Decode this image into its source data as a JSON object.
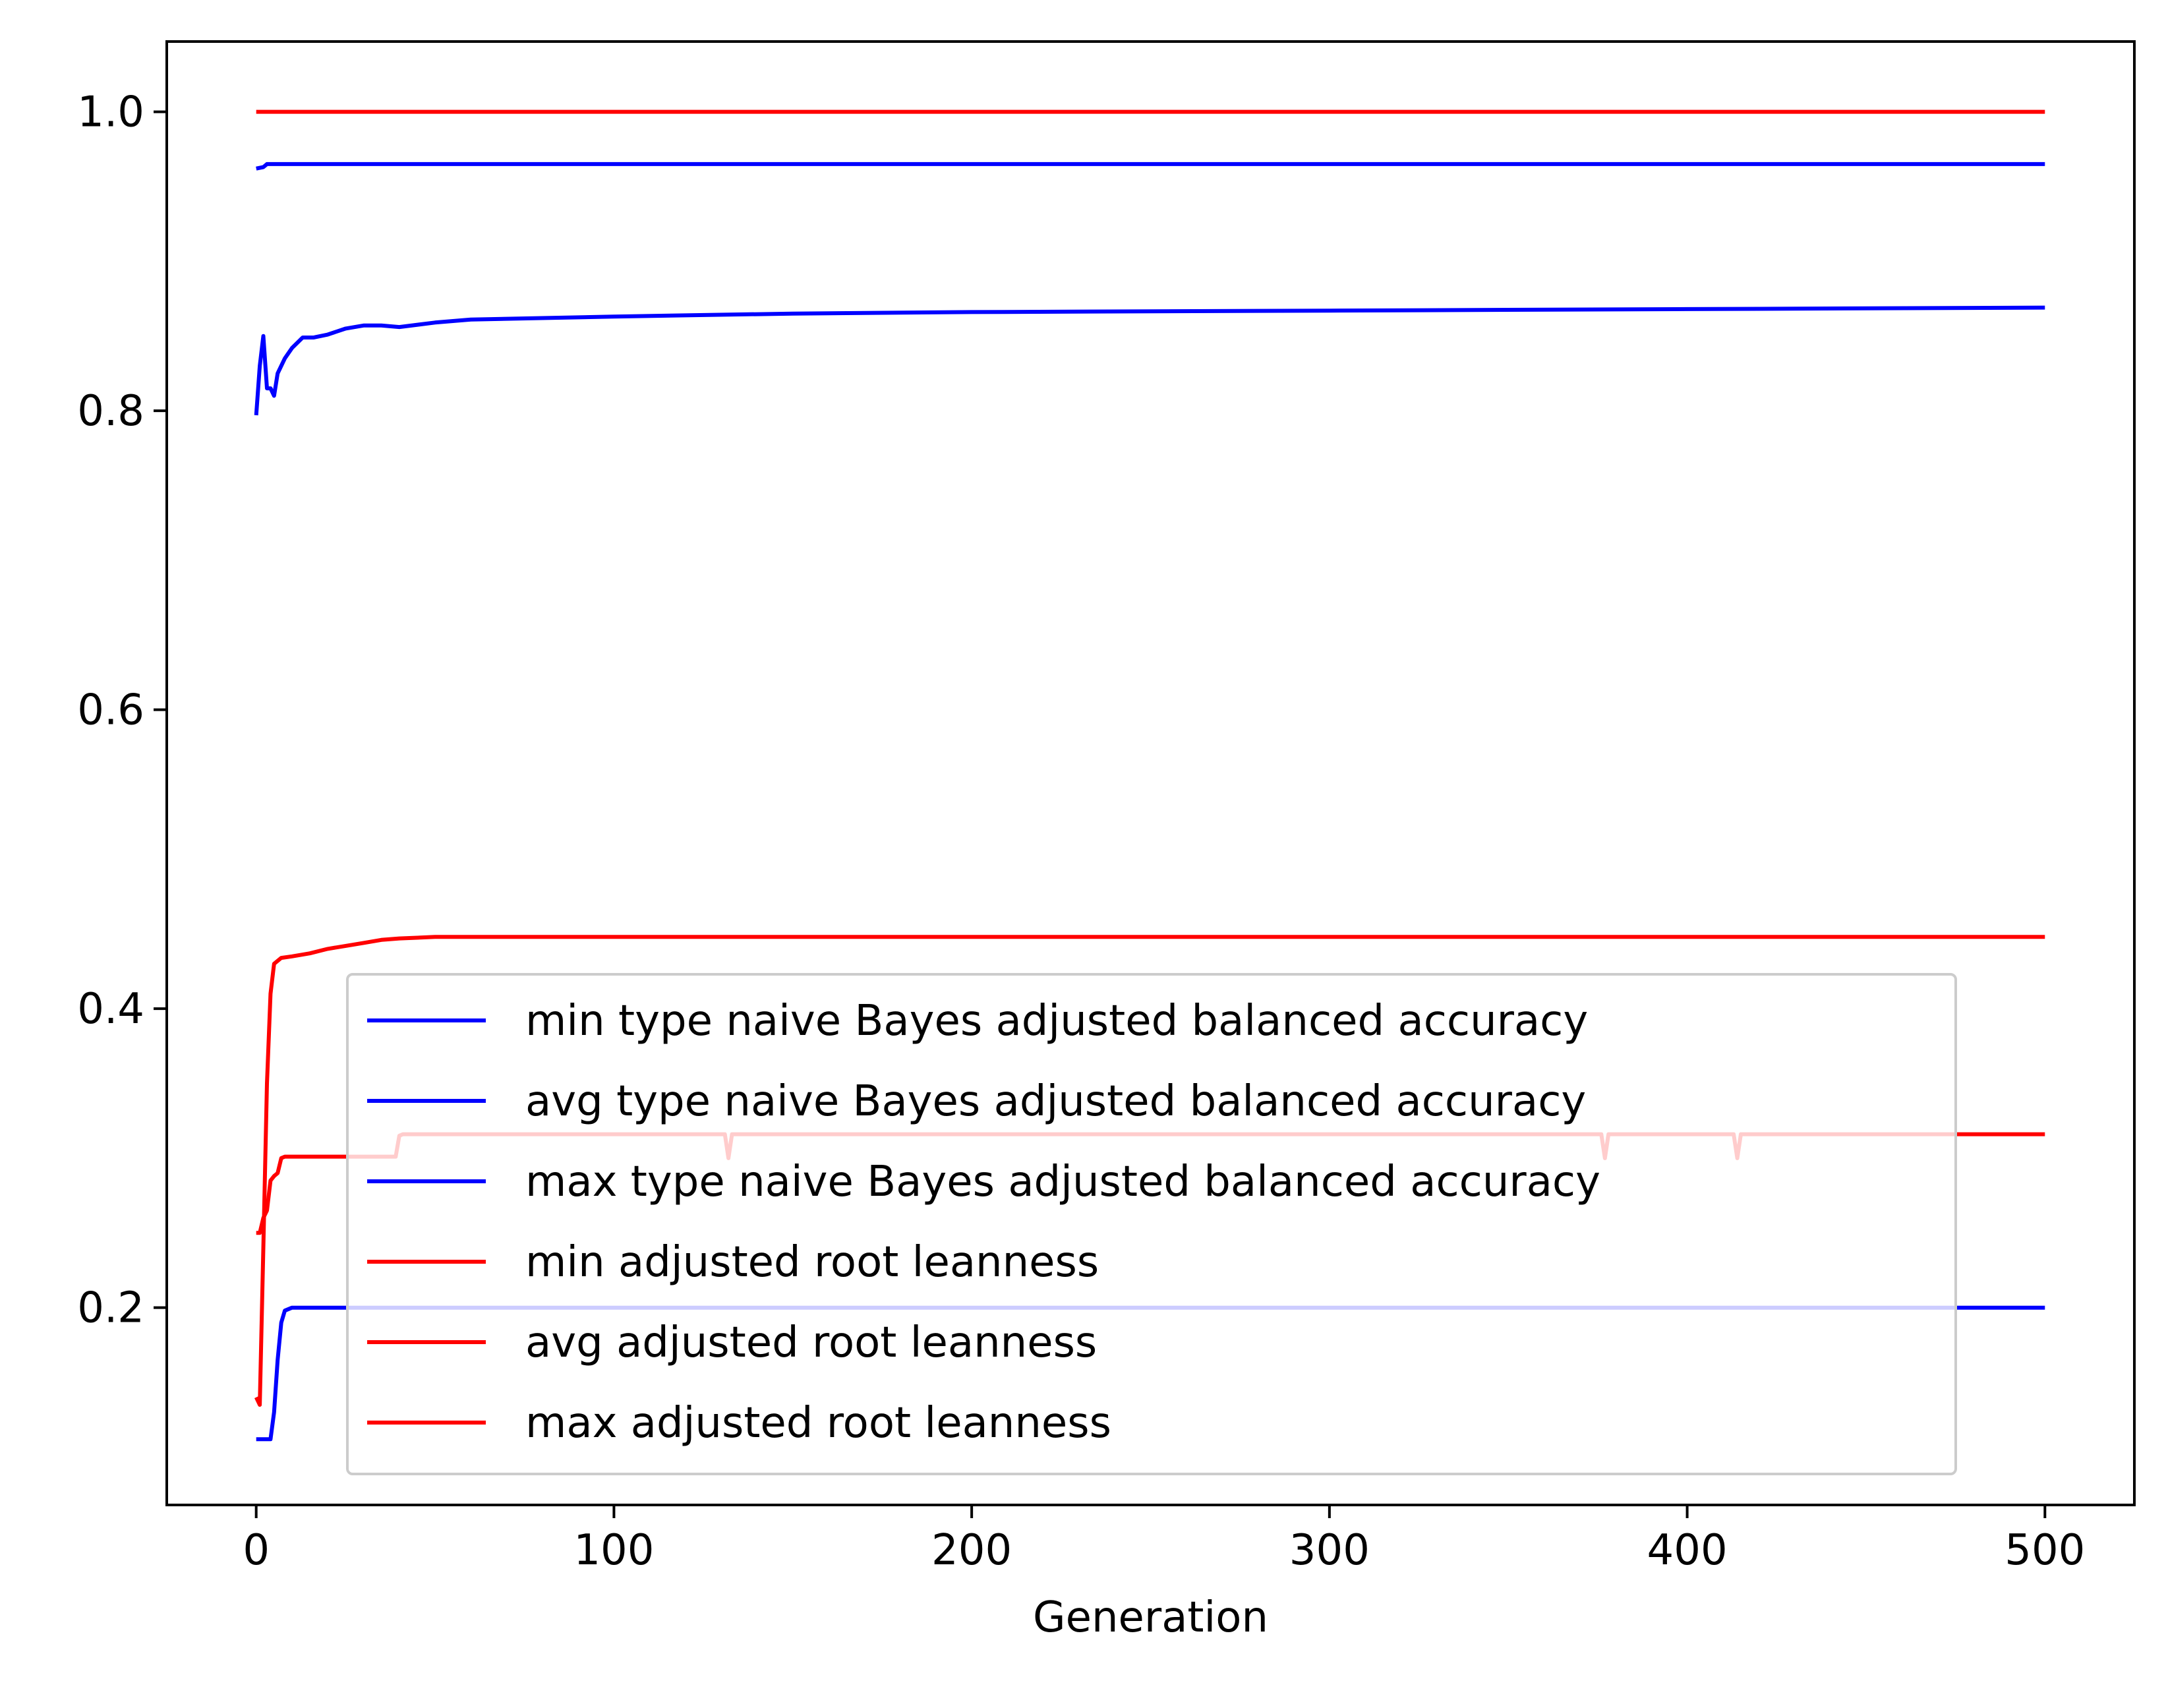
{
  "chart_data": {
    "type": "line",
    "title": "",
    "xlabel": "Generation",
    "ylabel": "",
    "xlim": [
      -25,
      525
    ],
    "ylim": [
      0.068,
      1.047
    ],
    "xticks": [
      0,
      100,
      200,
      300,
      400,
      500
    ],
    "xtick_labels": [
      "0",
      "100",
      "200",
      "300",
      "400",
      "500"
    ],
    "yticks": [
      0.2,
      0.4,
      0.6,
      0.8,
      1.0
    ],
    "ytick_labels": [
      "0.2",
      "0.4",
      "0.6",
      "0.8",
      "1.0"
    ],
    "grid": false,
    "legend_position": "lower-center",
    "series": [
      {
        "name": "min type naive Bayes adjusted balanced accuracy",
        "color": "#0000ff",
        "x": [
          0,
          4,
          5,
          6,
          7,
          8,
          10,
          500
        ],
        "y": [
          0.112,
          0.112,
          0.13,
          0.165,
          0.19,
          0.198,
          0.2,
          0.2
        ]
      },
      {
        "name": "avg type naive Bayes adjusted balanced accuracy",
        "color": "#0000ff",
        "x": [
          0,
          1,
          2,
          3,
          4,
          5,
          6,
          8,
          10,
          13,
          16,
          20,
          25,
          30,
          35,
          40,
          50,
          60,
          80,
          100,
          150,
          200,
          300,
          400,
          500
        ],
        "y": [
          0.797,
          0.83,
          0.85,
          0.815,
          0.815,
          0.81,
          0.825,
          0.835,
          0.842,
          0.849,
          0.849,
          0.851,
          0.855,
          0.857,
          0.857,
          0.856,
          0.859,
          0.861,
          0.862,
          0.863,
          0.865,
          0.866,
          0.867,
          0.868,
          0.869
        ]
      },
      {
        "name": "max type naive Bayes adjusted balanced accuracy",
        "color": "#0000ff",
        "x": [
          0,
          2,
          3,
          500
        ],
        "y": [
          0.962,
          0.963,
          0.965,
          0.965
        ]
      },
      {
        "name": "min adjusted root leanness",
        "color": "#ff0000",
        "x": [
          0,
          1,
          2,
          3,
          4,
          5,
          6,
          7,
          8,
          10,
          39,
          40,
          41,
          131,
          132,
          133,
          376,
          377,
          378,
          413,
          414,
          415,
          500
        ],
        "y": [
          0.25,
          0.25,
          0.26,
          0.265,
          0.285,
          0.288,
          0.29,
          0.3,
          0.301,
          0.301,
          0.301,
          0.315,
          0.316,
          0.316,
          0.3,
          0.316,
          0.316,
          0.3,
          0.316,
          0.316,
          0.3,
          0.316,
          0.316
        ]
      },
      {
        "name": "avg adjusted root leanness",
        "color": "#ff0000",
        "x": [
          0,
          1,
          2,
          3,
          4,
          5,
          7,
          10,
          15,
          20,
          25,
          30,
          35,
          40,
          50,
          100,
          200,
          300,
          400,
          500
        ],
        "y": [
          0.14,
          0.135,
          0.24,
          0.35,
          0.41,
          0.43,
          0.434,
          0.435,
          0.437,
          0.44,
          0.442,
          0.444,
          0.446,
          0.447,
          0.448,
          0.448,
          0.448,
          0.448,
          0.448,
          0.448
        ]
      },
      {
        "name": "max adjusted root leanness",
        "color": "#ff0000",
        "x": [
          0,
          500
        ],
        "y": [
          1.0,
          1.0
        ]
      }
    ]
  }
}
